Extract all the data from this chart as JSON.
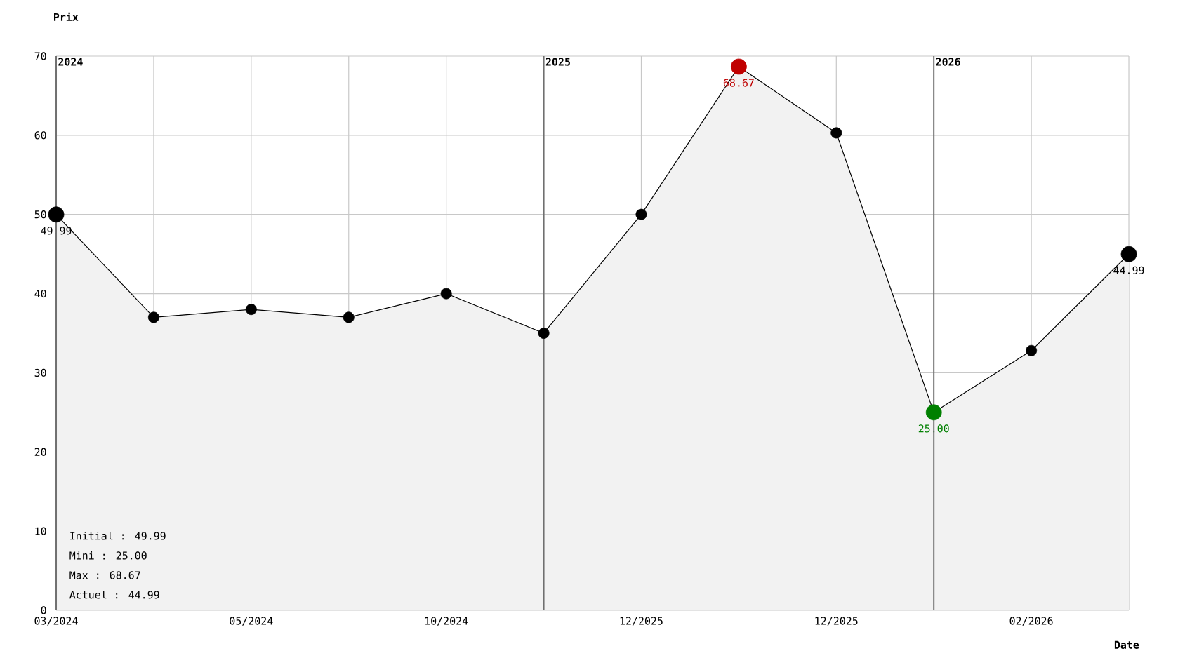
{
  "chart_data": {
    "type": "area",
    "ylabel": "Prix",
    "xlabel": "Date",
    "categories": [
      "03/2024",
      null,
      "05/2024",
      null,
      "10/2024",
      null,
      "12/2025",
      null,
      "12/2025",
      null,
      "02/2026",
      null
    ],
    "values": [
      49.99,
      37,
      38,
      37,
      40,
      35,
      50,
      68.67,
      60.3,
      25.0,
      32.8,
      44.99
    ],
    "color": "#f2f2f2",
    "colors": [
      "#000000",
      "#000000",
      "#000000",
      "#000000",
      "#000000",
      "#000000",
      "#000000",
      "#c00000",
      "#000000",
      "#008000",
      "#000000",
      "#000000"
    ],
    "value_labels": [
      "49.99",
      null,
      null,
      null,
      null,
      null,
      null,
      "68.67",
      null,
      "25.00",
      null,
      "44.99"
    ],
    "ylim": [
      0,
      70
    ],
    "yticks": [
      0,
      10,
      20,
      30,
      40,
      50,
      60,
      70
    ],
    "annotations": [
      "2024",
      "2025",
      "2026",
      "Initial : 49.99",
      "Mini : 25.00",
      "Max : 68.67",
      "Actuel : 44.99"
    ],
    "grid": true,
    "marker": "circle",
    "line_style": "solid"
  }
}
